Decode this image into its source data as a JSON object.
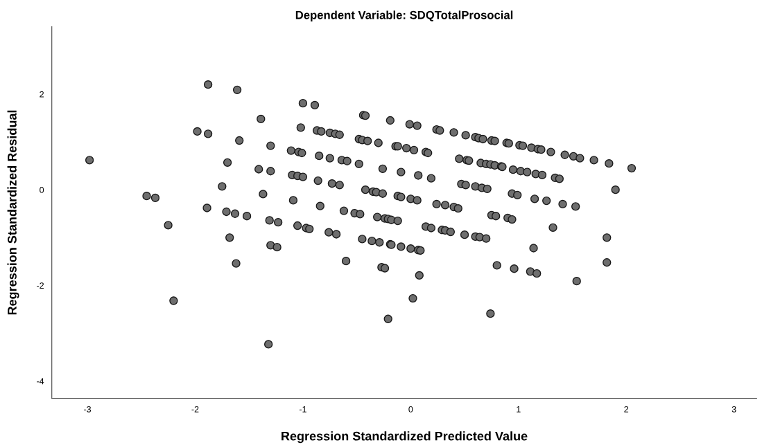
{
  "chart_data": {
    "type": "scatter",
    "title": "Dependent Variable: SDQTotalProsocial",
    "xlabel": "Regression Standardized Predicted Value",
    "ylabel": "Regression Standardized Residual",
    "xlim": [
      -3.33,
      3.21
    ],
    "ylim": [
      -4.36,
      3.41
    ],
    "xticks": [
      -3,
      -2,
      -1,
      0,
      1,
      2,
      3
    ],
    "yticks": [
      -4,
      -2,
      0,
      2
    ],
    "grid": false,
    "legend": false,
    "marker": "circle",
    "series": [
      {
        "color": "#6e6e6e",
        "x": [
          -2.98,
          -1.88,
          -1.61,
          -1.0,
          -0.89,
          -1.39,
          -1.98,
          -1.88,
          -1.59,
          -1.3,
          -1.7,
          -1.41,
          -1.3,
          -1.75,
          -2.45,
          -2.37,
          -1.37,
          -1.89,
          -1.71,
          -1.63,
          -1.52,
          -2.25,
          -1.68,
          -1.31,
          -1.23,
          -1.3,
          -1.24,
          -1.62,
          -2.2,
          -1.32,
          -1.02,
          -0.87,
          -0.83,
          -0.75,
          -0.7,
          -0.66,
          -0.44,
          -0.42,
          -0.19,
          -0.01,
          0.06,
          0.24,
          0.27,
          0.4,
          0.51,
          0.6,
          0.63,
          0.67,
          0.75,
          0.78,
          0.89,
          0.91,
          1.01,
          1.04,
          1.12,
          1.18,
          1.21,
          1.3,
          1.43,
          1.51,
          1.57,
          1.7,
          1.84,
          2.05,
          1.9,
          -0.48,
          -0.45,
          -0.4,
          -0.3,
          -0.14,
          -0.12,
          -0.04,
          0.03,
          0.14,
          0.16,
          -1.11,
          -1.04,
          -1.01,
          -0.85,
          -0.75,
          -0.64,
          -0.59,
          -0.48,
          -0.26,
          -0.09,
          0.07,
          0.19,
          0.45,
          0.52,
          0.54,
          0.65,
          0.7,
          0.74,
          0.78,
          0.84,
          0.85,
          0.95,
          1.02,
          1.08,
          1.16,
          1.22,
          1.34,
          1.38,
          -1.1,
          -1.05,
          -1.0,
          -0.86,
          -0.73,
          -0.66,
          -0.42,
          -0.35,
          -0.32,
          -0.26,
          -0.12,
          -0.09,
          0.0,
          0.06,
          0.24,
          0.32,
          0.4,
          0.44,
          0.47,
          0.51,
          0.6,
          0.66,
          0.71,
          0.94,
          0.99,
          1.15,
          1.26,
          1.41,
          1.53,
          -1.09,
          -0.84,
          -0.62,
          -0.52,
          -0.47,
          -0.31,
          -0.24,
          -0.21,
          -0.18,
          -0.12,
          0.14,
          0.19,
          0.29,
          0.32,
          0.37,
          0.5,
          0.6,
          0.64,
          0.7,
          0.75,
          0.79,
          0.9,
          0.94,
          1.32,
          -1.05,
          -0.97,
          -0.94,
          -0.76,
          -0.69,
          -0.45,
          -0.36,
          -0.29,
          -0.19,
          -0.18,
          -0.09,
          0.0,
          0.07,
          0.09,
          1.82,
          1.14,
          1.82,
          -0.6,
          -0.27,
          -0.24,
          0.08,
          0.8,
          0.96,
          1.11,
          1.17,
          1.54,
          0.02,
          -0.21,
          0.74
        ],
        "values": [
          0.62,
          2.2,
          2.09,
          1.81,
          1.77,
          1.48,
          1.22,
          1.17,
          1.03,
          0.92,
          0.57,
          0.43,
          0.39,
          0.07,
          -0.13,
          -0.17,
          -0.09,
          -0.38,
          -0.46,
          -0.5,
          -0.55,
          -0.74,
          -1.0,
          -0.64,
          -0.68,
          -1.16,
          -1.2,
          -1.54,
          -2.32,
          -3.23,
          1.3,
          1.24,
          1.22,
          1.19,
          1.17,
          1.15,
          1.56,
          1.55,
          1.45,
          1.37,
          1.34,
          1.26,
          1.24,
          1.2,
          1.14,
          1.1,
          1.08,
          1.06,
          1.03,
          1.02,
          0.98,
          0.97,
          0.93,
          0.92,
          0.88,
          0.85,
          0.84,
          0.79,
          0.73,
          0.7,
          0.66,
          0.62,
          0.55,
          0.45,
          0.0,
          1.06,
          1.04,
          1.02,
          0.98,
          0.91,
          0.91,
          0.87,
          0.83,
          0.79,
          0.77,
          0.82,
          0.79,
          0.77,
          0.71,
          0.66,
          0.62,
          0.6,
          0.54,
          0.44,
          0.37,
          0.3,
          0.24,
          0.65,
          0.62,
          0.61,
          0.56,
          0.54,
          0.53,
          0.51,
          0.49,
          0.48,
          0.42,
          0.39,
          0.37,
          0.33,
          0.31,
          0.25,
          0.23,
          0.31,
          0.29,
          0.27,
          0.19,
          0.13,
          0.1,
          0.0,
          -0.04,
          -0.05,
          -0.08,
          -0.13,
          -0.15,
          -0.19,
          -0.22,
          -0.3,
          -0.32,
          -0.36,
          -0.39,
          0.12,
          0.1,
          0.07,
          0.04,
          0.02,
          -0.08,
          -0.11,
          -0.19,
          -0.23,
          -0.3,
          -0.35,
          -0.22,
          -0.34,
          -0.44,
          -0.49,
          -0.51,
          -0.57,
          -0.6,
          -0.61,
          -0.63,
          -0.65,
          -0.77,
          -0.8,
          -0.84,
          -0.85,
          -0.88,
          -0.94,
          -0.98,
          -0.99,
          -1.02,
          -0.53,
          -0.55,
          -0.59,
          -0.62,
          -0.79,
          -0.75,
          -0.8,
          -0.82,
          -0.89,
          -0.93,
          -1.03,
          -1.07,
          -1.1,
          -1.14,
          -1.15,
          -1.19,
          -1.23,
          -1.26,
          -1.27,
          -1.0,
          -1.22,
          -1.52,
          -1.49,
          -1.62,
          -1.64,
          -1.79,
          -1.58,
          -1.65,
          -1.71,
          -1.75,
          -1.91,
          -2.27,
          -2.7,
          -2.59
        ]
      }
    ]
  }
}
